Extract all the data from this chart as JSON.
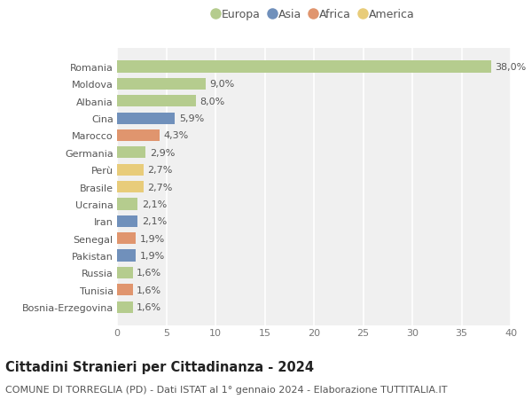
{
  "countries": [
    "Romania",
    "Moldova",
    "Albania",
    "Cina",
    "Marocco",
    "Germania",
    "Perù",
    "Brasile",
    "Ucraina",
    "Iran",
    "Senegal",
    "Pakistan",
    "Russia",
    "Tunisia",
    "Bosnia-Erzegovina"
  ],
  "values": [
    38.0,
    9.0,
    8.0,
    5.9,
    4.3,
    2.9,
    2.7,
    2.7,
    2.1,
    2.1,
    1.9,
    1.9,
    1.6,
    1.6,
    1.6
  ],
  "labels": [
    "38,0%",
    "9,0%",
    "8,0%",
    "5,9%",
    "4,3%",
    "2,9%",
    "2,7%",
    "2,7%",
    "2,1%",
    "2,1%",
    "1,9%",
    "1,9%",
    "1,6%",
    "1,6%",
    "1,6%"
  ],
  "continents": [
    "Europa",
    "Europa",
    "Europa",
    "Asia",
    "Africa",
    "Europa",
    "America",
    "America",
    "Europa",
    "Asia",
    "Africa",
    "Asia",
    "Europa",
    "Africa",
    "Europa"
  ],
  "continent_colors": {
    "Europa": "#b5cc8e",
    "Asia": "#7090bb",
    "Africa": "#e0956e",
    "America": "#e8cc7a"
  },
  "legend_order": [
    "Europa",
    "Asia",
    "Africa",
    "America"
  ],
  "title": "Cittadini Stranieri per Cittadinanza - 2024",
  "subtitle": "COMUNE DI TORREGLIA (PD) - Dati ISTAT al 1° gennaio 2024 - Elaborazione TUTTITALIA.IT",
  "xlim": [
    0,
    40
  ],
  "xticks": [
    0,
    5,
    10,
    15,
    20,
    25,
    30,
    35,
    40
  ],
  "background_color": "#ffffff",
  "plot_background": "#f0f0f0",
  "grid_color": "#ffffff",
  "bar_height": 0.68,
  "label_fontsize": 8,
  "tick_fontsize": 8,
  "title_fontsize": 10.5,
  "subtitle_fontsize": 8,
  "legend_fontsize": 9
}
